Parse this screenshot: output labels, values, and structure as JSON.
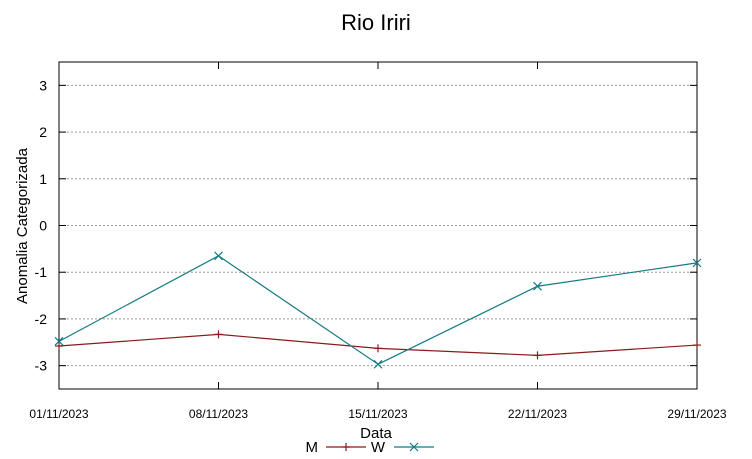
{
  "chart_data": {
    "type": "line",
    "title": "Rio Iriri",
    "xlabel": "Data",
    "ylabel": "Anomalia Categorizada",
    "categories": [
      "01/11/2023",
      "08/11/2023",
      "15/11/2023",
      "22/11/2023",
      "29/11/2023"
    ],
    "ylim": [
      -3.5,
      3.5
    ],
    "yticks": [
      3,
      2,
      1,
      0,
      -1,
      -2,
      -3
    ],
    "grid": true,
    "legend_position": "bottom-center",
    "series": [
      {
        "name": "M",
        "color": "#8b1a1a",
        "marker": "plus",
        "values": [
          -2.58,
          -2.33,
          -2.63,
          -2.78,
          -2.56
        ]
      },
      {
        "name": "W",
        "color": "#137a82",
        "marker": "cross",
        "values": [
          -2.48,
          -0.65,
          -2.97,
          -1.3,
          -0.8
        ]
      }
    ]
  }
}
